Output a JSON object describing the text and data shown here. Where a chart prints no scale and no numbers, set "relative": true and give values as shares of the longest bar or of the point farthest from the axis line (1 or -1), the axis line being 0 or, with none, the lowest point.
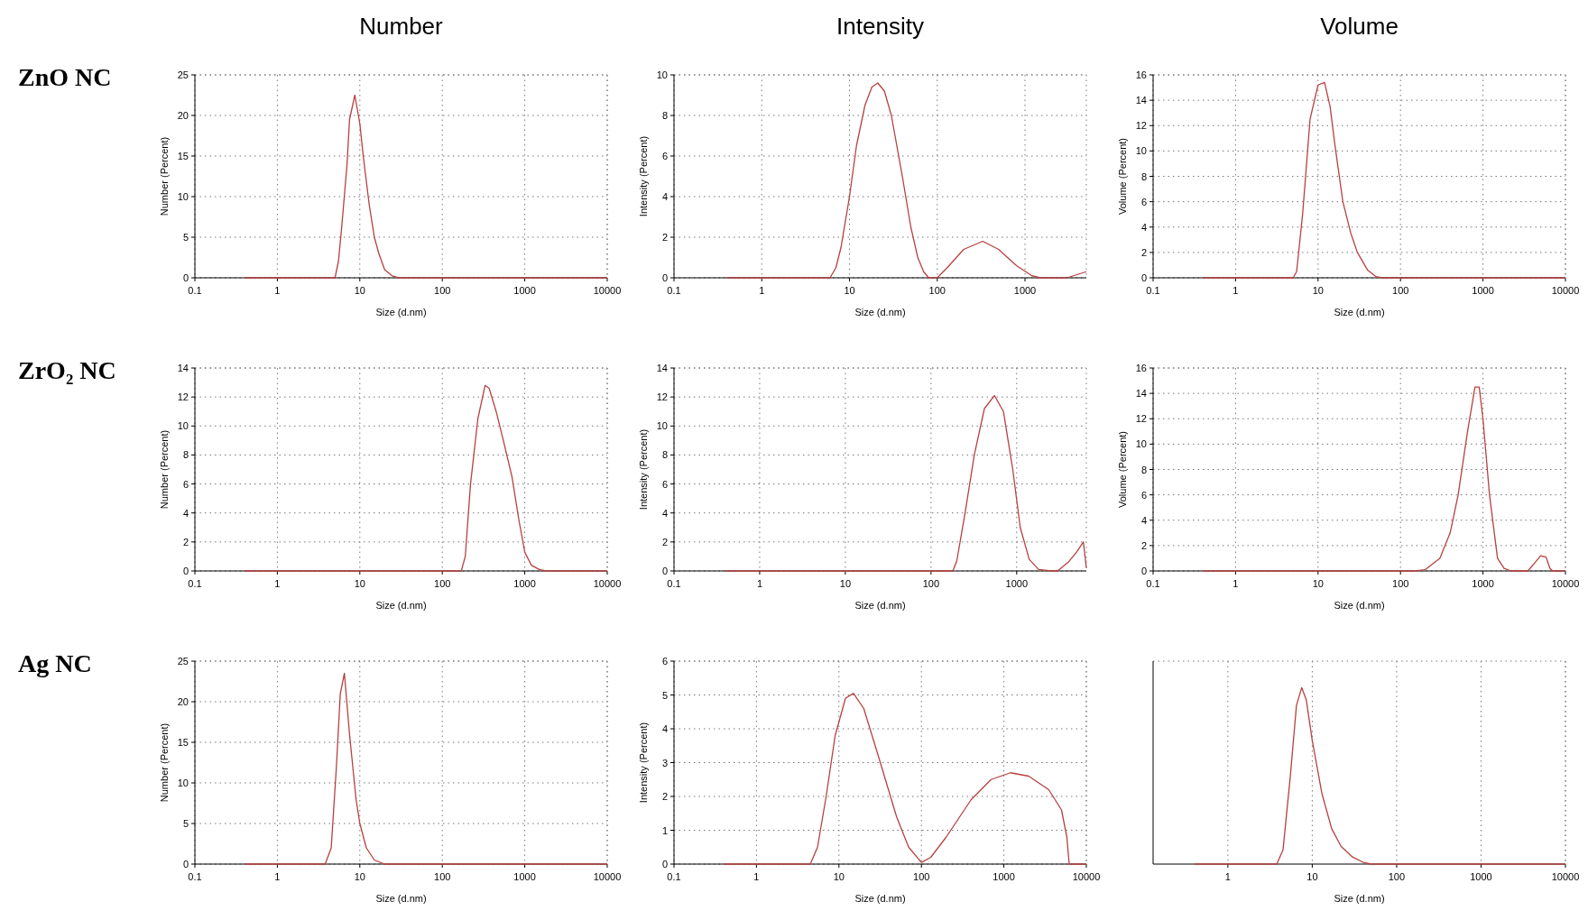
{
  "chart_data": [
    {
      "type": "line",
      "title": "Number",
      "annotations": [
        "ZnO NC"
      ],
      "xlabel": "Size (d.nm)",
      "ylabel": "Number (Percent)",
      "log": "x",
      "grid": true,
      "xlim": [
        0.1,
        10000
      ],
      "xticks": [
        0.1,
        1,
        10,
        100,
        1000,
        10000
      ],
      "ylim": [
        0,
        25
      ],
      "yticks": [
        0,
        5,
        10,
        15,
        20,
        25
      ],
      "series": [
        {
          "color": "#b84040",
          "x": [
            0.4,
            5,
            5.5,
            6,
            7,
            7.5,
            8.7,
            10,
            11,
            13,
            15,
            17,
            20,
            25,
            30,
            10000
          ],
          "values": [
            0,
            0,
            2,
            6,
            14,
            19.5,
            22.5,
            19,
            15,
            9,
            5,
            3,
            1,
            0.2,
            0,
            0
          ]
        }
      ]
    },
    {
      "type": "line",
      "title": "Intensity",
      "xlabel": "Size (d.nm)",
      "ylabel": "Intensity (Percent)",
      "log": "x",
      "grid": true,
      "xlim": [
        0.1,
        5000
      ],
      "xticks": [
        0.1,
        1,
        10,
        100,
        1000
      ],
      "ylim": [
        0,
        10
      ],
      "yticks": [
        0,
        2,
        4,
        6,
        8,
        10
      ],
      "series": [
        {
          "color": "#b84040",
          "x": [
            0.4,
            6,
            7,
            8,
            10,
            12,
            15,
            18,
            21,
            25,
            30,
            40,
            50,
            60,
            70,
            80,
            100,
            130,
            200,
            330,
            500,
            800,
            1200,
            1500,
            3000,
            5000
          ],
          "values": [
            0,
            0,
            0.5,
            1.5,
            4,
            6.5,
            8.5,
            9.4,
            9.6,
            9.2,
            8,
            5,
            2.5,
            1,
            0.3,
            0,
            0,
            0.5,
            1.4,
            1.8,
            1.4,
            0.6,
            0.1,
            0,
            0,
            0.3
          ]
        }
      ]
    },
    {
      "type": "line",
      "title": "Volume",
      "xlabel": "Size (d.nm)",
      "ylabel": "Volume (Percent)",
      "log": "x",
      "grid": true,
      "xlim": [
        0.1,
        10000
      ],
      "xticks": [
        0.1,
        1,
        10,
        100,
        1000,
        10000
      ],
      "ylim": [
        0,
        16
      ],
      "yticks": [
        0,
        2,
        4,
        6,
        8,
        10,
        12,
        14,
        16
      ],
      "series": [
        {
          "color": "#b84040",
          "x": [
            0.4,
            5,
            5.5,
            6.5,
            8,
            10,
            12,
            14,
            16,
            20,
            25,
            30,
            40,
            50,
            60,
            10000
          ],
          "values": [
            0,
            0,
            0.5,
            5,
            12.5,
            15.2,
            15.4,
            13.5,
            10.5,
            6,
            3.5,
            2,
            0.6,
            0.1,
            0,
            0
          ]
        }
      ]
    },
    {
      "type": "line",
      "annotations": [
        "ZrO₂ NC"
      ],
      "xlabel": "Size (d.nm)",
      "ylabel": "Number (Percent)",
      "log": "x",
      "grid": true,
      "xlim": [
        0.1,
        10000
      ],
      "xticks": [
        0.1,
        1,
        10,
        100,
        1000,
        10000
      ],
      "ylim": [
        0,
        14
      ],
      "yticks": [
        0,
        2,
        4,
        6,
        8,
        10,
        12,
        14
      ],
      "series": [
        {
          "color": "#b84040",
          "x": [
            0.4,
            170,
            190,
            220,
            270,
            330,
            370,
            450,
            550,
            700,
            850,
            1000,
            1200,
            1500,
            1800,
            10000
          ],
          "values": [
            0,
            0,
            1,
            6,
            10.5,
            12.8,
            12.6,
            11,
            9,
            6.5,
            3.5,
            1.3,
            0.4,
            0.1,
            0,
            0
          ]
        }
      ]
    },
    {
      "type": "line",
      "xlabel": "Size (d.nm)",
      "ylabel": "Intensity (Percent)",
      "log": "x",
      "grid": true,
      "xlim": [
        0.1,
        6500
      ],
      "xticks": [
        0.1,
        1,
        10,
        100,
        1000
      ],
      "ylim": [
        0,
        14
      ],
      "yticks": [
        0,
        2,
        4,
        6,
        8,
        10,
        12,
        14
      ],
      "series": [
        {
          "color": "#b84040",
          "x": [
            0.4,
            180,
            200,
            250,
            320,
            420,
            550,
            700,
            900,
            1100,
            1400,
            1800,
            2500,
            3000,
            4000,
            5000,
            6000,
            6500
          ],
          "values": [
            0,
            0,
            0.7,
            4,
            8,
            11.2,
            12.1,
            11,
            7,
            3,
            0.8,
            0.1,
            0,
            0,
            0.6,
            1.3,
            2,
            0.2
          ]
        }
      ]
    },
    {
      "type": "line",
      "xlabel": "Size (d.nm)",
      "ylabel": "Volume (Percent)",
      "log": "x",
      "grid": true,
      "xlim": [
        0.1,
        10000
      ],
      "xticks": [
        0.1,
        1,
        10,
        100,
        1000,
        10000
      ],
      "ylim": [
        0,
        16
      ],
      "yticks": [
        0,
        2,
        4,
        6,
        8,
        10,
        12,
        14,
        16
      ],
      "series": [
        {
          "color": "#b84040",
          "x": [
            0.4,
            150,
            200,
            300,
            400,
            500,
            650,
            800,
            900,
            1000,
            1200,
            1500,
            1800,
            2200,
            3500,
            4200,
            5000,
            5800,
            6500,
            7000,
            10000
          ],
          "values": [
            0,
            0,
            0.1,
            1,
            3,
            6,
            11,
            14.5,
            14.5,
            12,
            6,
            1,
            0.2,
            0,
            0,
            0.6,
            1.2,
            1.1,
            0.2,
            0,
            0
          ]
        }
      ]
    },
    {
      "type": "line",
      "annotations": [
        "Ag NC"
      ],
      "xlabel": "Size (d.nm)",
      "ylabel": "Number (Percent)",
      "log": "x",
      "grid": true,
      "xlim": [
        0.1,
        10000
      ],
      "xticks": [
        0.1,
        1,
        10,
        100,
        1000,
        10000
      ],
      "ylim": [
        0,
        25
      ],
      "yticks": [
        0,
        5,
        10,
        15,
        20,
        25
      ],
      "series": [
        {
          "color": "#b84040",
          "x": [
            0.4,
            3.8,
            4.5,
            5.2,
            5.8,
            6.5,
            7.5,
            9,
            10,
            12,
            15,
            20,
            10000
          ],
          "values": [
            0,
            0,
            2,
            12,
            21,
            23.5,
            16,
            8,
            5,
            2,
            0.5,
            0,
            0
          ]
        }
      ]
    },
    {
      "type": "line",
      "xlabel": "Size (d.nm)",
      "ylabel": "Intensity (Percent)",
      "log": "x",
      "grid": true,
      "xlim": [
        0.1,
        10000
      ],
      "xticks": [
        0.1,
        1,
        10,
        100,
        1000,
        10000
      ],
      "ylim": [
        0,
        6
      ],
      "yticks": [
        0,
        1,
        2,
        3,
        4,
        5,
        6
      ],
      "series": [
        {
          "color": "#b84040",
          "x": [
            0.4,
            4.5,
            5.5,
            7,
            9,
            12,
            15,
            20,
            30,
            50,
            70,
            100,
            130,
            200,
            400,
            700,
            1200,
            2000,
            3500,
            5000,
            5800,
            6200,
            10000
          ],
          "values": [
            0,
            0,
            0.5,
            2,
            3.8,
            4.9,
            5.05,
            4.6,
            3.2,
            1.4,
            0.5,
            0.05,
            0.2,
            0.8,
            1.9,
            2.5,
            2.7,
            2.6,
            2.2,
            1.6,
            0.8,
            0,
            0
          ]
        }
      ]
    },
    {
      "type": "line",
      "relative": true,
      "xlabel": "Size (d.nm)",
      "log": "x",
      "grid": "x",
      "xlim": [
        0.13,
        10000
      ],
      "xticks": [
        1,
        10,
        100,
        1000,
        10000
      ],
      "series": [
        {
          "color": "#b84040",
          "x": [
            0.4,
            3.8,
            4.5,
            5.5,
            6.5,
            7.5,
            8.5,
            10,
            13,
            17,
            22,
            30,
            40,
            50,
            10000
          ],
          "values": [
            0,
            0,
            0.08,
            0.5,
            0.9,
            1,
            0.93,
            0.7,
            0.4,
            0.2,
            0.1,
            0.04,
            0.01,
            0,
            0
          ]
        }
      ]
    }
  ]
}
